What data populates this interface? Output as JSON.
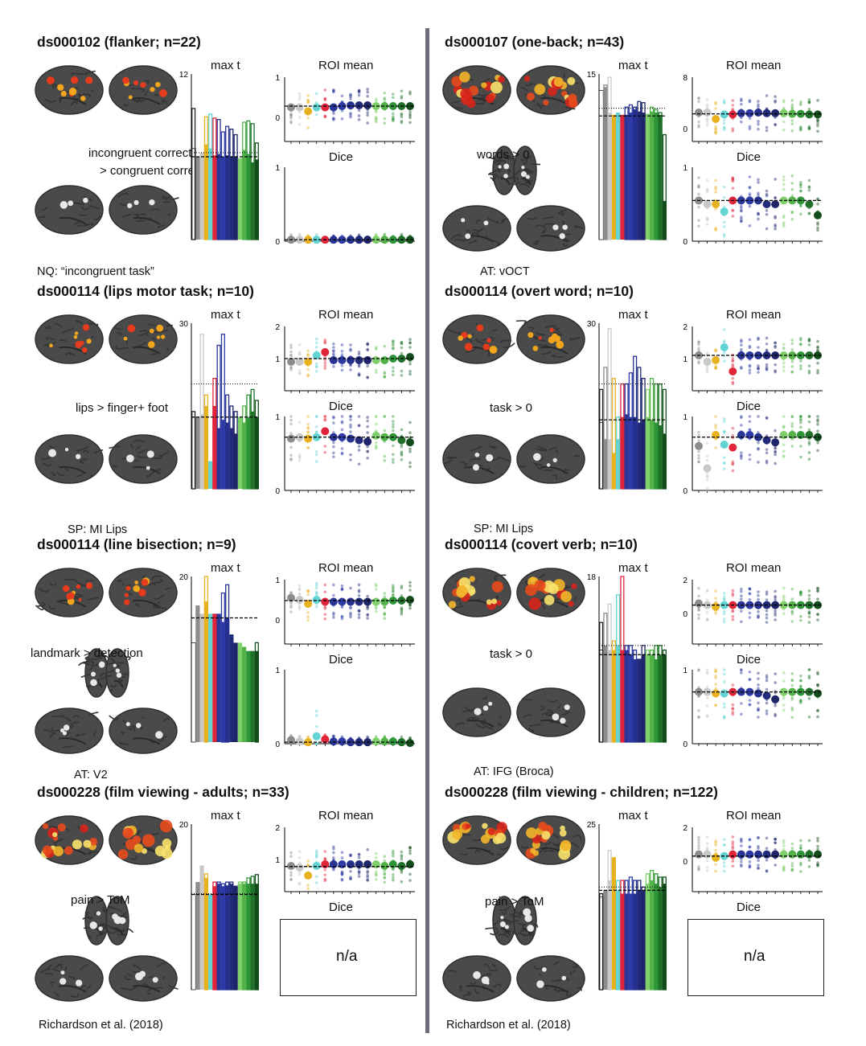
{
  "labels": {
    "max_t": "max t",
    "roi_mean": "ROI mean",
    "dice": "Dice",
    "na": "n/a"
  },
  "colors": [
    "#ffffff",
    "#8c8c8c",
    "#c8c8c8",
    "#e8b21e",
    "#62d4d4",
    "#e0253a",
    "#2a3598",
    "#2d3aa6",
    "#26318f",
    "#222a7a",
    "#1f2568",
    "#7fd06a",
    "#52b248",
    "#2e9438",
    "#20702a",
    "#134d1c"
  ],
  "panels": [
    {
      "title": "ds000102 (flanker; n=22)",
      "contrast": [
        "incongruent correct",
        "> congruent correct"
      ],
      "ref": "NQ: “incongruent task”",
      "chart_data": {
        "type": "bar",
        "maxt_ymax": "12",
        "maxt_bars": [
          6.6,
          6.0,
          6.3,
          6.9,
          6.6,
          6.1,
          6.2,
          6.0,
          6.1,
          6.0,
          6.0,
          5.9,
          6.5,
          6.2,
          5.6,
          5.8
        ],
        "maxt_outline": [
          9.5,
          null,
          null,
          8.9,
          9.1,
          8.8,
          8.7,
          7.8,
          8.2,
          8.0,
          7.6,
          null,
          8.5,
          8.6,
          8.4,
          7.0
        ],
        "maxt_ref_dashed": 6.0,
        "maxt_ref_dotted": 6.3,
        "roi_ymax": "1",
        "roi_ymid": "0",
        "roi_means": [
          0.25,
          0.25,
          0.15,
          0.25,
          0.25,
          0.25,
          0.28,
          0.3,
          0.3,
          0.3,
          0.28,
          0.28,
          0.28,
          0.28,
          0.28
        ],
        "roi_ref": 0.28,
        "dice_ymax": "1",
        "dice_means": [
          0.02,
          0.02,
          0.02,
          0.02,
          0.02,
          0.02,
          0.02,
          0.02,
          0.02,
          0.02,
          0.02,
          0.02,
          0.02,
          0.02,
          0.02
        ],
        "dice_ref": 0.02
      }
    },
    {
      "title": "ds000107 (one-back; n=43)",
      "contrast": [
        "words > 0"
      ],
      "ref": "AT: vOCT",
      "chart_data": {
        "type": "bar",
        "maxt_ymax": "15",
        "maxt_bars": [
          13.5,
          13.8,
          11.5,
          11.3,
          11.5,
          11.3,
          11.3,
          11.5,
          11.8,
          11.6,
          11.5,
          11.4,
          11.6,
          11.5,
          11.3,
          3.5
        ],
        "maxt_outline": [
          null,
          14.0,
          14.7,
          null,
          null,
          null,
          12.0,
          12.2,
          12.0,
          12.5,
          12.4,
          null,
          12.0,
          11.8,
          11.5,
          9.5
        ],
        "maxt_ref_dashed": 11.2,
        "maxt_ref_dotted": 11.9,
        "roi_ymax": "8",
        "roi_ymid": "0",
        "roi_means": [
          2.5,
          2.5,
          1.5,
          2.2,
          2.2,
          2.4,
          2.4,
          2.5,
          2.4,
          2.4,
          2.4,
          2.3,
          2.3,
          2.2,
          2.2
        ],
        "roi_ref": 2.3,
        "dice_ymax": "1",
        "dice_means": [
          0.55,
          0.5,
          0.5,
          0.4,
          0.55,
          0.55,
          0.55,
          0.55,
          0.5,
          0.5,
          0.55,
          0.55,
          0.55,
          0.5,
          0.35
        ],
        "dice_ref": 0.55
      }
    },
    {
      "title": "ds000114 (lips motor task; n=10)",
      "contrast": [
        "lips > finger+ foot"
      ],
      "ref": "SP: MI Lips",
      "chart_data": {
        "type": "bar",
        "maxt_ymax": "30",
        "maxt_bars": [
          13.0,
          13.0,
          13.5,
          15.0,
          5.0,
          15.0,
          11.0,
          12.5,
          12.0,
          11.0,
          10.0,
          13.0,
          12.0,
          13.0,
          14.0,
          13.0
        ],
        "maxt_outline": [
          14.0,
          null,
          28.0,
          17.0,
          null,
          20.0,
          26.0,
          28.0,
          17.0,
          15.0,
          14.0,
          null,
          15.0,
          17.0,
          18.0,
          16.0
        ],
        "maxt_ref_dashed": 13.0,
        "maxt_ref_dotted": 19.0,
        "roi_ymax": "2",
        "roi_ymid": "1",
        "roi_means": [
          0.9,
          0.9,
          0.9,
          1.1,
          1.2,
          0.95,
          0.95,
          0.95,
          0.95,
          0.95,
          0.95,
          0.95,
          1.0,
          1.0,
          1.05
        ],
        "roi_ref": 1.0,
        "dice_ymax": "1",
        "dice_means": [
          0.7,
          0.72,
          0.7,
          0.72,
          0.8,
          0.72,
          0.72,
          0.7,
          0.68,
          0.66,
          0.74,
          0.72,
          0.72,
          0.68,
          0.65
        ],
        "dice_ref": 0.72
      }
    },
    {
      "title": "ds000114 (overt word; n=10)",
      "contrast": [
        "task > 0"
      ],
      "ref": "SP: MI Lips",
      "chart_data": {
        "type": "bar",
        "maxt_ymax": "30",
        "maxt_bars": [
          12.0,
          9.0,
          9.0,
          6.5,
          9.0,
          13.0,
          13.5,
          13.0,
          13.0,
          12.0,
          12.5,
          13.0,
          12.5,
          12.0,
          11.5,
          10.0
        ],
        "maxt_outline": [
          18.0,
          22.0,
          29.0,
          20.0,
          13.0,
          19.0,
          19.0,
          21.0,
          24.0,
          22.0,
          20.0,
          18.0,
          20.0,
          19.0,
          19.0,
          18.0
        ],
        "maxt_ref_dashed": 12.5,
        "maxt_ref_dotted": 19.0,
        "roi_ymax": "2",
        "roi_ymid": "1",
        "roi_means": [
          1.1,
          0.9,
          0.95,
          1.35,
          0.6,
          1.1,
          1.1,
          1.1,
          1.1,
          1.1,
          1.1,
          1.1,
          1.1,
          1.1,
          1.1
        ],
        "roi_ref": 1.1,
        "dice_ymax": "1",
        "dice_means": [
          0.6,
          0.3,
          0.75,
          0.62,
          0.58,
          0.75,
          0.75,
          0.72,
          0.68,
          0.65,
          0.75,
          0.75,
          0.75,
          0.75,
          0.72
        ],
        "dice_ref": 0.72
      }
    },
    {
      "title": "ds000114 (line bisection; n=9)",
      "contrast": [
        "landmark > detection"
      ],
      "ref": "AT: V2",
      "chart_data": {
        "type": "bar",
        "maxt_ymax": "20",
        "maxt_bars": [
          12.0,
          16.5,
          15.5,
          17.0,
          15.5,
          15.5,
          15.5,
          14.5,
          15.0,
          13.0,
          12.0,
          12.0,
          11.5,
          11.0,
          11.0,
          11.0
        ],
        "maxt_outline": [
          null,
          null,
          null,
          20.0,
          null,
          null,
          null,
          18.0,
          19.0,
          null,
          null,
          null,
          null,
          null,
          null,
          12.0
        ],
        "maxt_ref_dashed": 15.0,
        "maxt_ref_dotted": 15.0,
        "roi_ymax": "1",
        "roi_ymid": "0",
        "roi_means": [
          0.55,
          0.5,
          0.4,
          0.5,
          0.45,
          0.45,
          0.45,
          0.45,
          0.45,
          0.45,
          0.45,
          0.45,
          0.48,
          0.48,
          0.5
        ],
        "roi_ref": 0.48,
        "dice_ymax": "1",
        "dice_means": [
          0.05,
          0.03,
          0.02,
          0.1,
          0.06,
          0.03,
          0.03,
          0.02,
          0.02,
          0.02,
          0.03,
          0.03,
          0.03,
          0.02,
          0.01
        ],
        "dice_ref": 0.02
      }
    },
    {
      "title": "ds000114 (covert verb; n=10)",
      "contrast": [
        "task > 0"
      ],
      "ref": "AT: IFG (Broca)",
      "chart_data": {
        "type": "bar",
        "maxt_ymax": "18",
        "maxt_bars": [
          10.0,
          10.5,
          10.0,
          10.0,
          10.5,
          10.0,
          10.0,
          9.5,
          9.0,
          9.0,
          9.5,
          9.5,
          9.5,
          9.0,
          9.5,
          9.5
        ],
        "maxt_outline": [
          13.0,
          14.0,
          15.0,
          11.0,
          16.0,
          18.0,
          10.5,
          10.5,
          10.0,
          9.0,
          10.5,
          10.0,
          10.0,
          10.5,
          10.5,
          10.0
        ],
        "maxt_ref_dashed": 9.5,
        "maxt_ref_dotted": 10.5,
        "roi_ymax": "2",
        "roi_ymid": "0",
        "roi_means": [
          0.6,
          0.5,
          0.4,
          0.5,
          0.5,
          0.5,
          0.5,
          0.5,
          0.5,
          0.5,
          0.5,
          0.5,
          0.5,
          0.5,
          0.5
        ],
        "roi_ref": 0.5,
        "dice_ymax": "1",
        "dice_means": [
          0.7,
          0.7,
          0.68,
          0.68,
          0.7,
          0.7,
          0.7,
          0.68,
          0.65,
          0.6,
          0.7,
          0.7,
          0.7,
          0.7,
          0.68
        ],
        "dice_ref": 0.7
      }
    },
    {
      "title": "ds000228 (film viewing - adults; n=33)",
      "contrast": [
        "pain > ToM"
      ],
      "ref": "Richardson et al. (2018)",
      "chart_data": {
        "type": "bar",
        "maxt_ymax": "20",
        "maxt_bars": [
          11.5,
          13.0,
          15.0,
          13.5,
          11.5,
          12.5,
          12.8,
          12.5,
          12.6,
          12.8,
          12.5,
          12.8,
          12.8,
          12.8,
          12.8,
          12.8
        ],
        "maxt_outline": [
          null,
          null,
          null,
          14.0,
          null,
          13.0,
          13.0,
          12.8,
          13.0,
          13.0,
          12.5,
          13.0,
          13.0,
          13.5,
          13.7,
          13.9
        ],
        "maxt_ref_dashed": 11.5,
        "maxt_ref_dotted": 11.6,
        "roi_ymax": "2",
        "roi_ymid": "1",
        "roi_means": [
          0.8,
          0.75,
          0.5,
          0.8,
          0.85,
          0.85,
          0.85,
          0.85,
          0.85,
          0.85,
          0.85,
          0.8,
          0.85,
          0.8,
          0.85
        ],
        "roi_ref": 0.78
      }
    },
    {
      "title": "ds000228 (film viewing - children; n=122)",
      "contrast": [
        "pain > ToM"
      ],
      "ref": "Richardson et al. (2018)",
      "chart_data": {
        "type": "bar",
        "maxt_ymax": "25",
        "maxt_bars": [
          14.0,
          15.0,
          16.5,
          20.0,
          15.0,
          14.5,
          14.5,
          14.5,
          14.5,
          15.0,
          15.0,
          16.0,
          16.5,
          16.0,
          15.5,
          16.0
        ],
        "maxt_outline": [
          14.5,
          null,
          21.0,
          null,
          16.5,
          16.5,
          16.5,
          17.0,
          16.5,
          16.5,
          15.5,
          17.5,
          18.0,
          17.5,
          17.0,
          17.0
        ],
        "maxt_ref_dashed": 15.0,
        "maxt_ref_dotted": 15.5,
        "roi_ymax": "2",
        "roi_ymid": "0",
        "roi_means": [
          0.4,
          0.4,
          0.2,
          0.3,
          0.4,
          0.4,
          0.4,
          0.4,
          0.4,
          0.4,
          0.4,
          0.4,
          0.4,
          0.4,
          0.4
        ],
        "roi_ref": 0.3
      }
    }
  ]
}
